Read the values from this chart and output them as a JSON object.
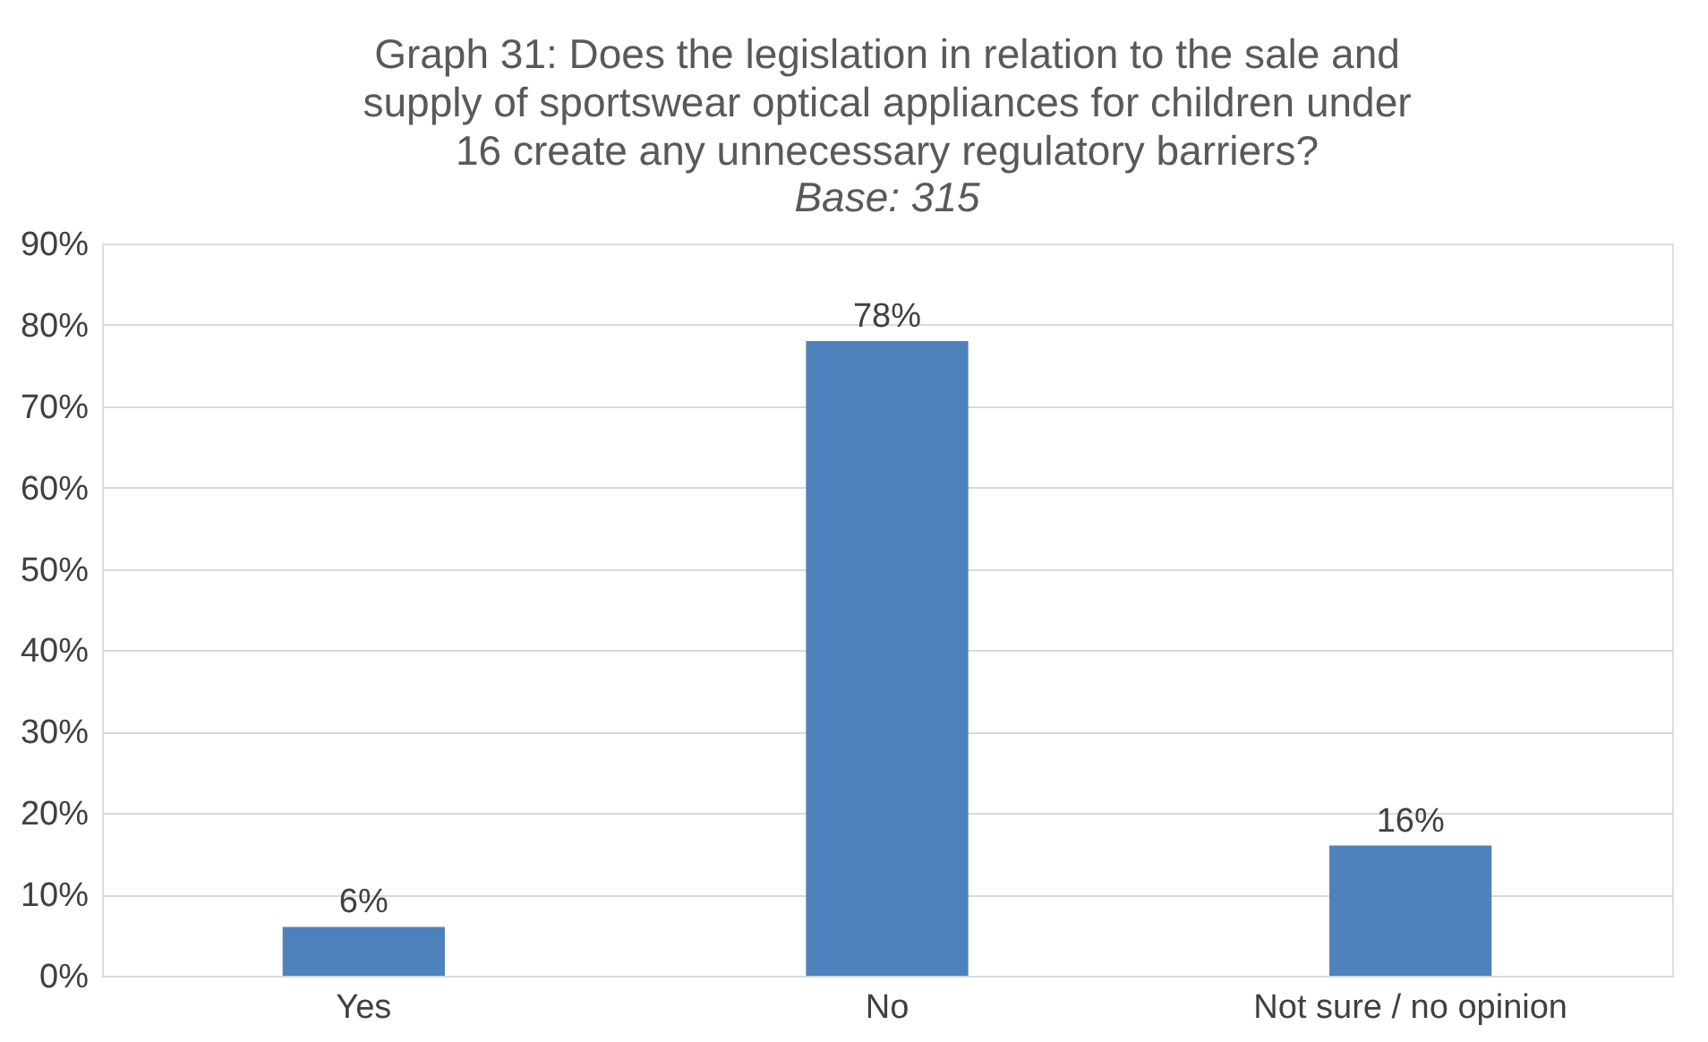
{
  "chart_data": {
    "type": "bar",
    "title": "Graph 31: Does the legislation in relation to the sale and\nsupply of sportswear optical appliances for children under\n16 create any unnecessary regulatory barriers?",
    "subtitle": "Base: 315",
    "categories": [
      "Yes",
      "No",
      "Not sure / no opinion"
    ],
    "values": [
      6,
      78,
      16
    ],
    "color": "#4f81bd",
    "value_labels": [
      "6%",
      "78%",
      "16%"
    ],
    "ylim": [
      0,
      90
    ],
    "yticks": [
      {
        "value": 0,
        "label": "0%"
      },
      {
        "value": 10,
        "label": "10%"
      },
      {
        "value": 20,
        "label": "20%"
      },
      {
        "value": 30,
        "label": "30%"
      },
      {
        "value": 40,
        "label": "40%"
      },
      {
        "value": 50,
        "label": "50%"
      },
      {
        "value": 60,
        "label": "60%"
      },
      {
        "value": 70,
        "label": "70%"
      },
      {
        "value": 80,
        "label": "80%"
      },
      {
        "value": 90,
        "label": "90%"
      }
    ],
    "grid": "y"
  }
}
